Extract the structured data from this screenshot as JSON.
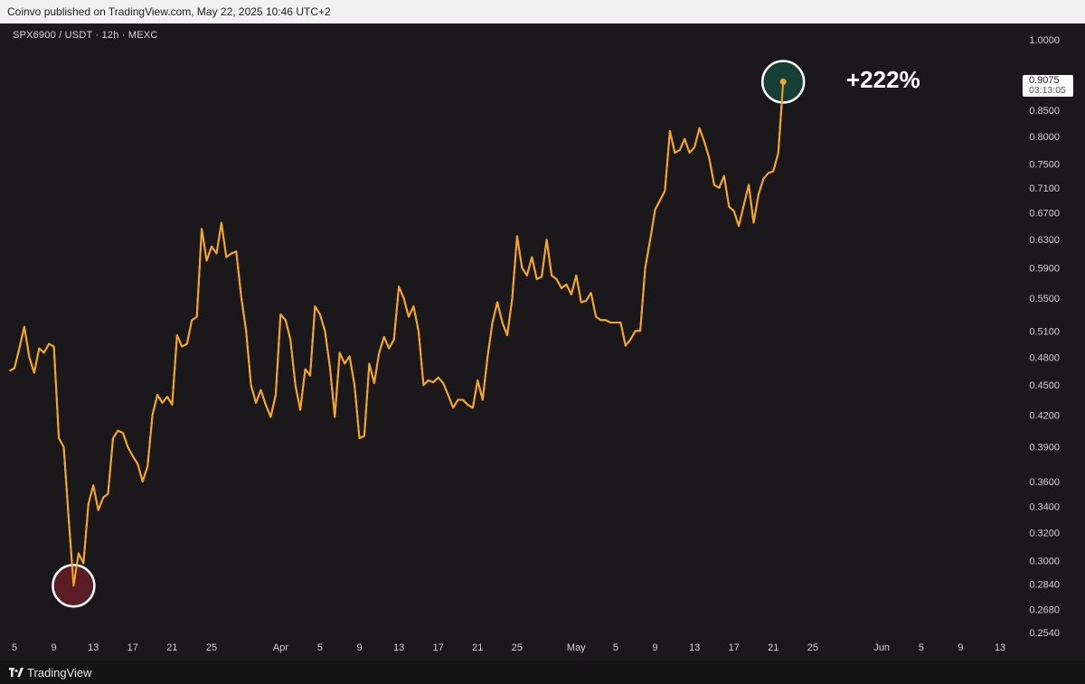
{
  "header": {
    "published_by": "Coinvo published on TradingView.com, May 22, 2025 10:46 UTC+2"
  },
  "symbol_line": "SPX6900 / USDT · 12h · MEXC",
  "annotation": {
    "label": "+222%"
  },
  "last_price": {
    "value": "0.9075",
    "countdown": "03:13:05"
  },
  "footer": {
    "brand": "TradingView"
  },
  "colors": {
    "line": "#f7a823",
    "low_marker": "#5a1d26",
    "high_marker": "#163f37",
    "marker_ring": "#ffffff",
    "background": "#1a181b"
  },
  "chart_data": {
    "type": "line",
    "interval": "12h",
    "y_scale": "log",
    "ylim": [
      0.245,
      1.03
    ],
    "y_ticks": [
      "1.0000",
      "0.8500",
      "0.8000",
      "0.7500",
      "0.7100",
      "0.6700",
      "0.6300",
      "0.5900",
      "0.5500",
      "0.5100",
      "0.4800",
      "0.4500",
      "0.4200",
      "0.3900",
      "0.3600",
      "0.3400",
      "0.3200",
      "0.3000",
      "0.2840",
      "0.2680",
      "0.2540"
    ],
    "x_ticks": [
      {
        "day": 0,
        "label": "5"
      },
      {
        "day": 4,
        "label": "9"
      },
      {
        "day": 8,
        "label": "13"
      },
      {
        "day": 12,
        "label": "17"
      },
      {
        "day": 16,
        "label": "21"
      },
      {
        "day": 20,
        "label": "25"
      },
      {
        "day": 27,
        "label": "Apr"
      },
      {
        "day": 31,
        "label": "5"
      },
      {
        "day": 35,
        "label": "9"
      },
      {
        "day": 39,
        "label": "13"
      },
      {
        "day": 43,
        "label": "17"
      },
      {
        "day": 47,
        "label": "21"
      },
      {
        "day": 51,
        "label": "25"
      },
      {
        "day": 57,
        "label": "May"
      },
      {
        "day": 61,
        "label": "5"
      },
      {
        "day": 65,
        "label": "9"
      },
      {
        "day": 69,
        "label": "13"
      },
      {
        "day": 73,
        "label": "17"
      },
      {
        "day": 77,
        "label": "21"
      },
      {
        "day": 81,
        "label": "25"
      },
      {
        "day": 88,
        "label": "Jun"
      },
      {
        "day": 92,
        "label": "5"
      },
      {
        "day": 96,
        "label": "9"
      },
      {
        "day": 100,
        "label": "13"
      }
    ],
    "series": [
      {
        "points": [
          [
            -0.5,
            0.465
          ],
          [
            0,
            0.468
          ],
          [
            0.5,
            0.49
          ],
          [
            1,
            0.515
          ],
          [
            1.5,
            0.48
          ],
          [
            2,
            0.463
          ],
          [
            2.5,
            0.49
          ],
          [
            3,
            0.485
          ],
          [
            3.5,
            0.495
          ],
          [
            4,
            0.492
          ],
          [
            4.5,
            0.398
          ],
          [
            5,
            0.39
          ],
          [
            5.5,
            0.33
          ],
          [
            6,
            0.283
          ],
          [
            6.5,
            0.305
          ],
          [
            7,
            0.298
          ],
          [
            7.5,
            0.342
          ],
          [
            8,
            0.357
          ],
          [
            8.5,
            0.337
          ],
          [
            9,
            0.347
          ],
          [
            9.5,
            0.35
          ],
          [
            10,
            0.398
          ],
          [
            10.5,
            0.405
          ],
          [
            11,
            0.403
          ],
          [
            11.5,
            0.39
          ],
          [
            12,
            0.382
          ],
          [
            12.5,
            0.375
          ],
          [
            13,
            0.36
          ],
          [
            13.5,
            0.373
          ],
          [
            14,
            0.42
          ],
          [
            14.5,
            0.44
          ],
          [
            15,
            0.432
          ],
          [
            15.5,
            0.438
          ],
          [
            16,
            0.43
          ],
          [
            16.5,
            0.505
          ],
          [
            17,
            0.492
          ],
          [
            17.5,
            0.495
          ],
          [
            18,
            0.523
          ],
          [
            18.5,
            0.527
          ],
          [
            19,
            0.646
          ],
          [
            19.5,
            0.6
          ],
          [
            20,
            0.62
          ],
          [
            20.5,
            0.61
          ],
          [
            21,
            0.655
          ],
          [
            21.5,
            0.605
          ],
          [
            22,
            0.61
          ],
          [
            22.5,
            0.613
          ],
          [
            23,
            0.553
          ],
          [
            23.5,
            0.51
          ],
          [
            24,
            0.45
          ],
          [
            24.5,
            0.432
          ],
          [
            25,
            0.445
          ],
          [
            25.5,
            0.43
          ],
          [
            26,
            0.418
          ],
          [
            26.5,
            0.44
          ],
          [
            27,
            0.53
          ],
          [
            27.5,
            0.523
          ],
          [
            28,
            0.5
          ],
          [
            28.5,
            0.45
          ],
          [
            29,
            0.425
          ],
          [
            29.5,
            0.467
          ],
          [
            30,
            0.46
          ],
          [
            30.5,
            0.54
          ],
          [
            31,
            0.53
          ],
          [
            31.5,
            0.51
          ],
          [
            32,
            0.47
          ],
          [
            32.5,
            0.418
          ],
          [
            33,
            0.485
          ],
          [
            33.5,
            0.473
          ],
          [
            34,
            0.481
          ],
          [
            34.5,
            0.45
          ],
          [
            35,
            0.398
          ],
          [
            35.5,
            0.4
          ],
          [
            36,
            0.473
          ],
          [
            36.5,
            0.452
          ],
          [
            37,
            0.485
          ],
          [
            37.5,
            0.503
          ],
          [
            38,
            0.49
          ],
          [
            38.5,
            0.5
          ],
          [
            39,
            0.565
          ],
          [
            39.5,
            0.55
          ],
          [
            40,
            0.527
          ],
          [
            40.5,
            0.54
          ],
          [
            41,
            0.51
          ],
          [
            41.5,
            0.45
          ],
          [
            42,
            0.455
          ],
          [
            42.5,
            0.453
          ],
          [
            43,
            0.458
          ],
          [
            43.5,
            0.452
          ],
          [
            44,
            0.44
          ],
          [
            44.5,
            0.427
          ],
          [
            45,
            0.435
          ],
          [
            45.5,
            0.435
          ],
          [
            46,
            0.43
          ],
          [
            46.5,
            0.427
          ],
          [
            47,
            0.455
          ],
          [
            47.5,
            0.435
          ],
          [
            48,
            0.48
          ],
          [
            48.5,
            0.52
          ],
          [
            49,
            0.545
          ],
          [
            49.5,
            0.52
          ],
          [
            50,
            0.505
          ],
          [
            50.5,
            0.55
          ],
          [
            51,
            0.635
          ],
          [
            51.5,
            0.59
          ],
          [
            52,
            0.58
          ],
          [
            52.5,
            0.605
          ],
          [
            53,
            0.575
          ],
          [
            53.5,
            0.578
          ],
          [
            54,
            0.63
          ],
          [
            54.5,
            0.58
          ],
          [
            55,
            0.575
          ],
          [
            55.5,
            0.563
          ],
          [
            56,
            0.568
          ],
          [
            56.5,
            0.555
          ],
          [
            57,
            0.58
          ],
          [
            57.5,
            0.545
          ],
          [
            58,
            0.547
          ],
          [
            58.5,
            0.557
          ],
          [
            59,
            0.527
          ],
          [
            59.5,
            0.523
          ],
          [
            60,
            0.523
          ],
          [
            60.5,
            0.52
          ],
          [
            61,
            0.52
          ],
          [
            61.5,
            0.52
          ],
          [
            62,
            0.493
          ],
          [
            62.5,
            0.5
          ],
          [
            63,
            0.51
          ],
          [
            63.5,
            0.51
          ],
          [
            64,
            0.59
          ],
          [
            64.5,
            0.63
          ],
          [
            65,
            0.675
          ],
          [
            65.5,
            0.69
          ],
          [
            66,
            0.705
          ],
          [
            66.5,
            0.81
          ],
          [
            67,
            0.77
          ],
          [
            67.5,
            0.775
          ],
          [
            68,
            0.795
          ],
          [
            68.5,
            0.77
          ],
          [
            69,
            0.78
          ],
          [
            69.5,
            0.815
          ],
          [
            70,
            0.79
          ],
          [
            70.5,
            0.76
          ],
          [
            71,
            0.715
          ],
          [
            71.5,
            0.71
          ],
          [
            72,
            0.73
          ],
          [
            72.5,
            0.68
          ],
          [
            73,
            0.673
          ],
          [
            73.5,
            0.65
          ],
          [
            74,
            0.682
          ],
          [
            74.5,
            0.715
          ],
          [
            75,
            0.655
          ],
          [
            75.5,
            0.7
          ],
          [
            76,
            0.725
          ],
          [
            76.5,
            0.735
          ],
          [
            77,
            0.738
          ],
          [
            77.5,
            0.77
          ],
          [
            78,
            0.9075
          ]
        ]
      }
    ],
    "annotations": [
      {
        "type": "low_marker",
        "day": 6,
        "value": 0.283
      },
      {
        "type": "high_marker",
        "day": 78,
        "value": 0.9075,
        "label": "+222%"
      }
    ]
  }
}
